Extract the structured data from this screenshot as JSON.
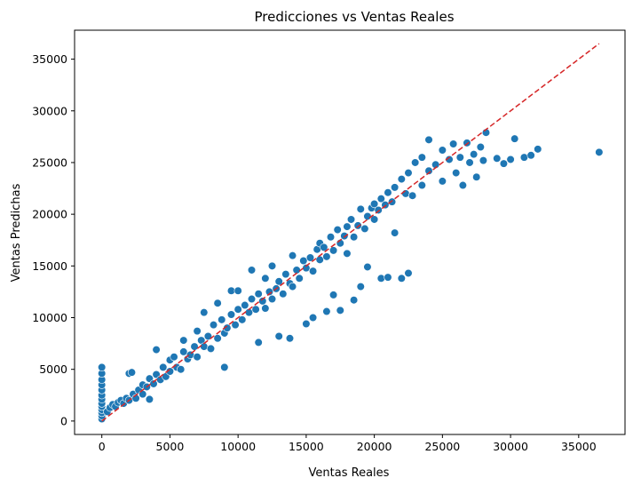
{
  "chart_data": {
    "type": "scatter",
    "title": "Predicciones vs Ventas Reales",
    "xlabel": "Ventas Reales",
    "ylabel": "Ventas Predichas",
    "xlim": [
      -2000,
      38400
    ],
    "ylim": [
      -1300,
      37800
    ],
    "xticks": [
      "0",
      "5000",
      "10000",
      "15000",
      "20000",
      "25000",
      "30000",
      "35000"
    ],
    "yticks": [
      "0",
      "5000",
      "10000",
      "15000",
      "20000",
      "25000",
      "30000",
      "35000"
    ],
    "grid": false,
    "legend": "none",
    "colors": {
      "points": "#1f77b4",
      "point_edge": "#ffffff",
      "reference_line": "#d62728"
    },
    "reference_line": {
      "style": "dashed",
      "from": [
        0,
        0
      ],
      "to": [
        36500,
        36500
      ]
    },
    "series": [
      {
        "values": [
          [
            0,
            200
          ],
          [
            0,
            500
          ],
          [
            0,
            800
          ],
          [
            0,
            1100
          ],
          [
            0,
            1400
          ],
          [
            0,
            1700
          ],
          [
            0,
            2100
          ],
          [
            0,
            2500
          ],
          [
            0,
            3000
          ],
          [
            0,
            3500
          ],
          [
            0,
            4000
          ],
          [
            0,
            4600
          ],
          [
            0,
            5200
          ],
          [
            400,
            900
          ],
          [
            600,
            1300
          ],
          [
            800,
            1600
          ],
          [
            1000,
            1400
          ],
          [
            1200,
            1800
          ],
          [
            1400,
            2000
          ],
          [
            1600,
            1700
          ],
          [
            1800,
            2200
          ],
          [
            2000,
            2000
          ],
          [
            2000,
            4600
          ],
          [
            2200,
            4700
          ],
          [
            2300,
            2600
          ],
          [
            2500,
            2200
          ],
          [
            2700,
            3000
          ],
          [
            3000,
            2600
          ],
          [
            3000,
            3500
          ],
          [
            3300,
            3300
          ],
          [
            3500,
            2100
          ],
          [
            3500,
            4100
          ],
          [
            3800,
            3600
          ],
          [
            4000,
            4500
          ],
          [
            4000,
            6900
          ],
          [
            4300,
            4000
          ],
          [
            4500,
            5200
          ],
          [
            4700,
            4300
          ],
          [
            5000,
            4800
          ],
          [
            5000,
            5900
          ],
          [
            5300,
            6200
          ],
          [
            5500,
            5200
          ],
          [
            5800,
            5000
          ],
          [
            6000,
            6700
          ],
          [
            6000,
            7800
          ],
          [
            6300,
            6000
          ],
          [
            6500,
            6400
          ],
          [
            6800,
            7200
          ],
          [
            7000,
            6200
          ],
          [
            7000,
            8700
          ],
          [
            7300,
            7800
          ],
          [
            7500,
            7200
          ],
          [
            7500,
            10500
          ],
          [
            7800,
            8200
          ],
          [
            8000,
            7000
          ],
          [
            8200,
            9300
          ],
          [
            8500,
            8000
          ],
          [
            8500,
            11400
          ],
          [
            8800,
            9800
          ],
          [
            9000,
            5200
          ],
          [
            9000,
            8500
          ],
          [
            9200,
            9000
          ],
          [
            9500,
            10300
          ],
          [
            9500,
            12600
          ],
          [
            9800,
            9300
          ],
          [
            10000,
            10800
          ],
          [
            10000,
            12600
          ],
          [
            10300,
            9800
          ],
          [
            10500,
            11200
          ],
          [
            10800,
            10500
          ],
          [
            11000,
            11800
          ],
          [
            11000,
            14600
          ],
          [
            11300,
            10800
          ],
          [
            11500,
            12300
          ],
          [
            11500,
            7600
          ],
          [
            11800,
            11600
          ],
          [
            12000,
            10900
          ],
          [
            12000,
            13800
          ],
          [
            12300,
            12500
          ],
          [
            12500,
            11800
          ],
          [
            12500,
            15000
          ],
          [
            12800,
            12800
          ],
          [
            13000,
            8200
          ],
          [
            13000,
            13500
          ],
          [
            13300,
            12300
          ],
          [
            13500,
            14200
          ],
          [
            13800,
            8000
          ],
          [
            13800,
            13300
          ],
          [
            14000,
            13000
          ],
          [
            14000,
            16000
          ],
          [
            14300,
            14600
          ],
          [
            14500,
            13800
          ],
          [
            14800,
            15500
          ],
          [
            15000,
            9400
          ],
          [
            15000,
            14800
          ],
          [
            15300,
            15800
          ],
          [
            15500,
            14500
          ],
          [
            15500,
            10000
          ],
          [
            15800,
            16600
          ],
          [
            16000,
            15600
          ],
          [
            16000,
            17200
          ],
          [
            16300,
            16800
          ],
          [
            16500,
            10600
          ],
          [
            16500,
            15900
          ],
          [
            16800,
            17800
          ],
          [
            17000,
            16500
          ],
          [
            17000,
            12200
          ],
          [
            17300,
            18500
          ],
          [
            17500,
            17200
          ],
          [
            17500,
            10700
          ],
          [
            17800,
            17900
          ],
          [
            18000,
            18800
          ],
          [
            18000,
            16200
          ],
          [
            18300,
            19500
          ],
          [
            18500,
            17800
          ],
          [
            18500,
            11700
          ],
          [
            18800,
            18900
          ],
          [
            19000,
            20500
          ],
          [
            19000,
            13000
          ],
          [
            19300,
            18600
          ],
          [
            19500,
            19800
          ],
          [
            19500,
            14900
          ],
          [
            19800,
            20600
          ],
          [
            20000,
            19500
          ],
          [
            20000,
            21000
          ],
          [
            20300,
            20400
          ],
          [
            20500,
            13800
          ],
          [
            20500,
            21500
          ],
          [
            20800,
            20900
          ],
          [
            21000,
            13900
          ],
          [
            21000,
            22100
          ],
          [
            21300,
            21200
          ],
          [
            21500,
            18200
          ],
          [
            21500,
            22600
          ],
          [
            22000,
            13800
          ],
          [
            22000,
            23400
          ],
          [
            22300,
            22000
          ],
          [
            22500,
            14300
          ],
          [
            22500,
            24000
          ],
          [
            22800,
            21800
          ],
          [
            23000,
            25000
          ],
          [
            23500,
            22800
          ],
          [
            23500,
            25500
          ],
          [
            24000,
            24200
          ],
          [
            24000,
            27200
          ],
          [
            24500,
            24800
          ],
          [
            25000,
            23200
          ],
          [
            25000,
            26200
          ],
          [
            25500,
            25300
          ],
          [
            25800,
            26800
          ],
          [
            26000,
            24000
          ],
          [
            26300,
            25500
          ],
          [
            26500,
            22800
          ],
          [
            26800,
            26900
          ],
          [
            27000,
            25000
          ],
          [
            27300,
            25800
          ],
          [
            27500,
            23600
          ],
          [
            27800,
            26500
          ],
          [
            28000,
            25200
          ],
          [
            28200,
            27900
          ],
          [
            29000,
            25400
          ],
          [
            29500,
            24900
          ],
          [
            30000,
            25300
          ],
          [
            30300,
            27300
          ],
          [
            31000,
            25500
          ],
          [
            31500,
            25700
          ],
          [
            32000,
            26300
          ],
          [
            36500,
            26000
          ]
        ]
      }
    ]
  }
}
